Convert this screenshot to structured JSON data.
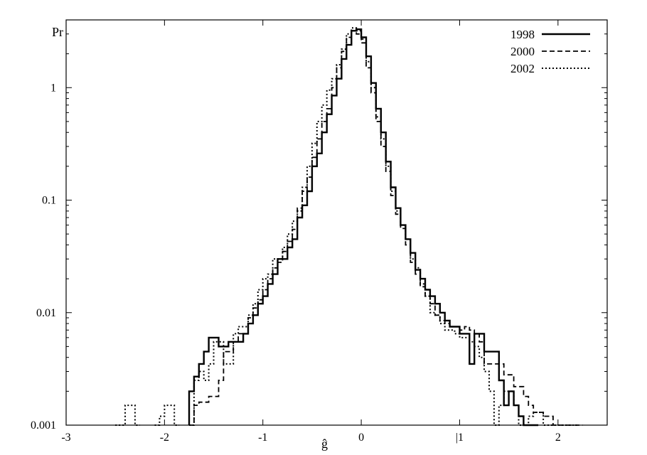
{
  "chart_data": {
    "type": "line",
    "step": true,
    "title": "",
    "xlabel": "ĝ",
    "ylabel": "Pr",
    "xlim": [
      -3,
      2.5
    ],
    "ylim": [
      0.001,
      4
    ],
    "yscale": "log",
    "grid": false,
    "legend_position": "top-right",
    "xticks": [
      -3,
      -2,
      -1,
      0,
      1,
      2
    ],
    "xtick_labels": [
      "-3",
      "-2",
      "-1",
      "0",
      "|1",
      "2"
    ],
    "yticks": [
      0.001,
      0.01,
      0.1,
      1
    ],
    "ytick_labels": [
      "0.001",
      "0.01",
      "0.1",
      "1"
    ],
    "series": [
      {
        "name": "1998",
        "dash": "",
        "width": 2.4,
        "x": [
          -1.75,
          -1.7,
          -1.65,
          -1.6,
          -1.55,
          -1.5,
          -1.45,
          -1.4,
          -1.35,
          -1.3,
          -1.25,
          -1.2,
          -1.15,
          -1.1,
          -1.05,
          -1.0,
          -0.95,
          -0.9,
          -0.85,
          -0.8,
          -0.75,
          -0.7,
          -0.65,
          -0.6,
          -0.55,
          -0.5,
          -0.45,
          -0.4,
          -0.35,
          -0.3,
          -0.25,
          -0.2,
          -0.15,
          -0.1,
          -0.05,
          0.0,
          0.05,
          0.1,
          0.15,
          0.2,
          0.25,
          0.3,
          0.35,
          0.4,
          0.45,
          0.5,
          0.55,
          0.6,
          0.65,
          0.7,
          0.75,
          0.8,
          0.85,
          0.9,
          0.95,
          1.0,
          1.05,
          1.1,
          1.15,
          1.2,
          1.25,
          1.3,
          1.35,
          1.4,
          1.45,
          1.5,
          1.55,
          1.6,
          1.65,
          1.7,
          1.75
        ],
        "y": [
          0.002,
          0.0027,
          0.0035,
          0.0045,
          0.006,
          0.006,
          0.005,
          0.005,
          0.0055,
          0.0055,
          0.0055,
          0.0065,
          0.008,
          0.0095,
          0.012,
          0.014,
          0.018,
          0.022,
          0.03,
          0.03,
          0.038,
          0.045,
          0.07,
          0.09,
          0.12,
          0.2,
          0.26,
          0.4,
          0.58,
          0.85,
          1.2,
          1.8,
          2.4,
          3.2,
          3.3,
          2.8,
          1.9,
          1.1,
          0.65,
          0.4,
          0.22,
          0.13,
          0.085,
          0.06,
          0.045,
          0.034,
          0.024,
          0.02,
          0.016,
          0.014,
          0.012,
          0.01,
          0.0085,
          0.0075,
          0.0075,
          0.0065,
          0.0065,
          0.0035,
          0.0065,
          0.0065,
          0.0045,
          0.0045,
          0.0045,
          0.0025,
          0.0015,
          0.002,
          0.0015,
          0.0012,
          0.001,
          0.001,
          0.001
        ]
      },
      {
        "name": "2000",
        "dash": "7,4",
        "width": 1.8,
        "x": [
          -1.75,
          -1.7,
          -1.65,
          -1.6,
          -1.55,
          -1.5,
          -1.45,
          -1.4,
          -1.35,
          -1.3,
          -1.25,
          -1.2,
          -1.15,
          -1.1,
          -1.05,
          -1.0,
          -0.95,
          -0.9,
          -0.85,
          -0.8,
          -0.75,
          -0.7,
          -0.65,
          -0.6,
          -0.55,
          -0.5,
          -0.45,
          -0.4,
          -0.35,
          -0.3,
          -0.25,
          -0.2,
          -0.15,
          -0.1,
          -0.05,
          0.0,
          0.05,
          0.1,
          0.15,
          0.2,
          0.25,
          0.3,
          0.35,
          0.4,
          0.45,
          0.5,
          0.55,
          0.6,
          0.65,
          0.7,
          0.75,
          0.8,
          0.85,
          0.9,
          0.95,
          1.0,
          1.05,
          1.1,
          1.15,
          1.2,
          1.25,
          1.3,
          1.35,
          1.4,
          1.45,
          1.5,
          1.55,
          1.6,
          1.65,
          1.7,
          1.75,
          1.8,
          1.85,
          1.9,
          1.95,
          2.0,
          2.05,
          2.1,
          2.15,
          2.2
        ],
        "y": [
          0.001,
          0.0015,
          0.0016,
          0.0016,
          0.0018,
          0.0018,
          0.0025,
          0.0045,
          0.0045,
          0.0055,
          0.0065,
          0.0065,
          0.009,
          0.011,
          0.013,
          0.016,
          0.02,
          0.025,
          0.028,
          0.035,
          0.043,
          0.055,
          0.085,
          0.12,
          0.16,
          0.24,
          0.35,
          0.5,
          0.65,
          1.0,
          1.5,
          2.1,
          2.8,
          3.2,
          3.0,
          2.5,
          1.5,
          0.9,
          0.5,
          0.3,
          0.18,
          0.11,
          0.075,
          0.056,
          0.04,
          0.028,
          0.022,
          0.017,
          0.014,
          0.012,
          0.0095,
          0.0085,
          0.008,
          0.0075,
          0.0075,
          0.007,
          0.0075,
          0.007,
          0.0065,
          0.0055,
          0.0035,
          0.0035,
          0.0035,
          0.0035,
          0.0028,
          0.0028,
          0.0022,
          0.0022,
          0.0018,
          0.0015,
          0.0013,
          0.0013,
          0.0012,
          0.0012,
          0.001,
          0.001,
          0.001,
          0.001,
          0.001,
          0.001
        ]
      },
      {
        "name": "2002",
        "dash": "2,3",
        "width": 2.0,
        "x": [
          -2.5,
          -2.45,
          -2.4,
          -2.35,
          -2.3,
          -2.1,
          -2.05,
          -2.0,
          -1.95,
          -1.9,
          -1.75,
          -1.7,
          -1.65,
          -1.6,
          -1.55,
          -1.5,
          -1.45,
          -1.4,
          -1.35,
          -1.3,
          -1.25,
          -1.2,
          -1.15,
          -1.1,
          -1.05,
          -1.0,
          -0.95,
          -0.9,
          -0.85,
          -0.8,
          -0.75,
          -0.7,
          -0.65,
          -0.6,
          -0.55,
          -0.5,
          -0.45,
          -0.4,
          -0.35,
          -0.3,
          -0.25,
          -0.2,
          -0.15,
          -0.1,
          -0.05,
          0.0,
          0.05,
          0.1,
          0.15,
          0.2,
          0.25,
          0.3,
          0.35,
          0.4,
          0.45,
          0.5,
          0.55,
          0.6,
          0.65,
          0.7,
          0.75,
          0.8,
          0.85,
          0.9,
          0.95,
          1.0,
          1.05,
          1.1,
          1.15,
          1.2,
          1.25,
          1.3,
          1.35,
          1.4,
          1.45,
          1.5,
          1.55,
          1.6,
          1.65,
          1.7,
          1.75,
          1.8,
          1.85,
          1.9,
          1.95,
          2.0,
          2.05,
          2.1,
          2.15
        ],
        "y": [
          0.001,
          0.001,
          0.0015,
          0.0015,
          0.001,
          0.001,
          0.0012,
          0.0015,
          0.0015,
          0.001,
          0.001,
          0.0025,
          0.003,
          0.0025,
          0.0035,
          0.0055,
          0.0055,
          0.0035,
          0.0035,
          0.0065,
          0.0075,
          0.0075,
          0.0095,
          0.012,
          0.016,
          0.02,
          0.022,
          0.03,
          0.03,
          0.038,
          0.05,
          0.065,
          0.08,
          0.13,
          0.2,
          0.32,
          0.5,
          0.7,
          0.95,
          1.2,
          1.6,
          2.2,
          3.0,
          3.4,
          3.2,
          2.7,
          1.7,
          1.0,
          0.55,
          0.35,
          0.2,
          0.12,
          0.08,
          0.06,
          0.045,
          0.03,
          0.025,
          0.018,
          0.014,
          0.01,
          0.0095,
          0.008,
          0.007,
          0.007,
          0.0065,
          0.006,
          0.006,
          0.0055,
          0.005,
          0.004,
          0.003,
          0.002,
          0.001,
          0.0015,
          0.002,
          0.002,
          0.0015,
          0.001,
          0.001,
          0.0012,
          0.0013,
          0.0013,
          0.001,
          0.001,
          0.001,
          0.001,
          0.001,
          0.001,
          0.001
        ]
      }
    ]
  }
}
